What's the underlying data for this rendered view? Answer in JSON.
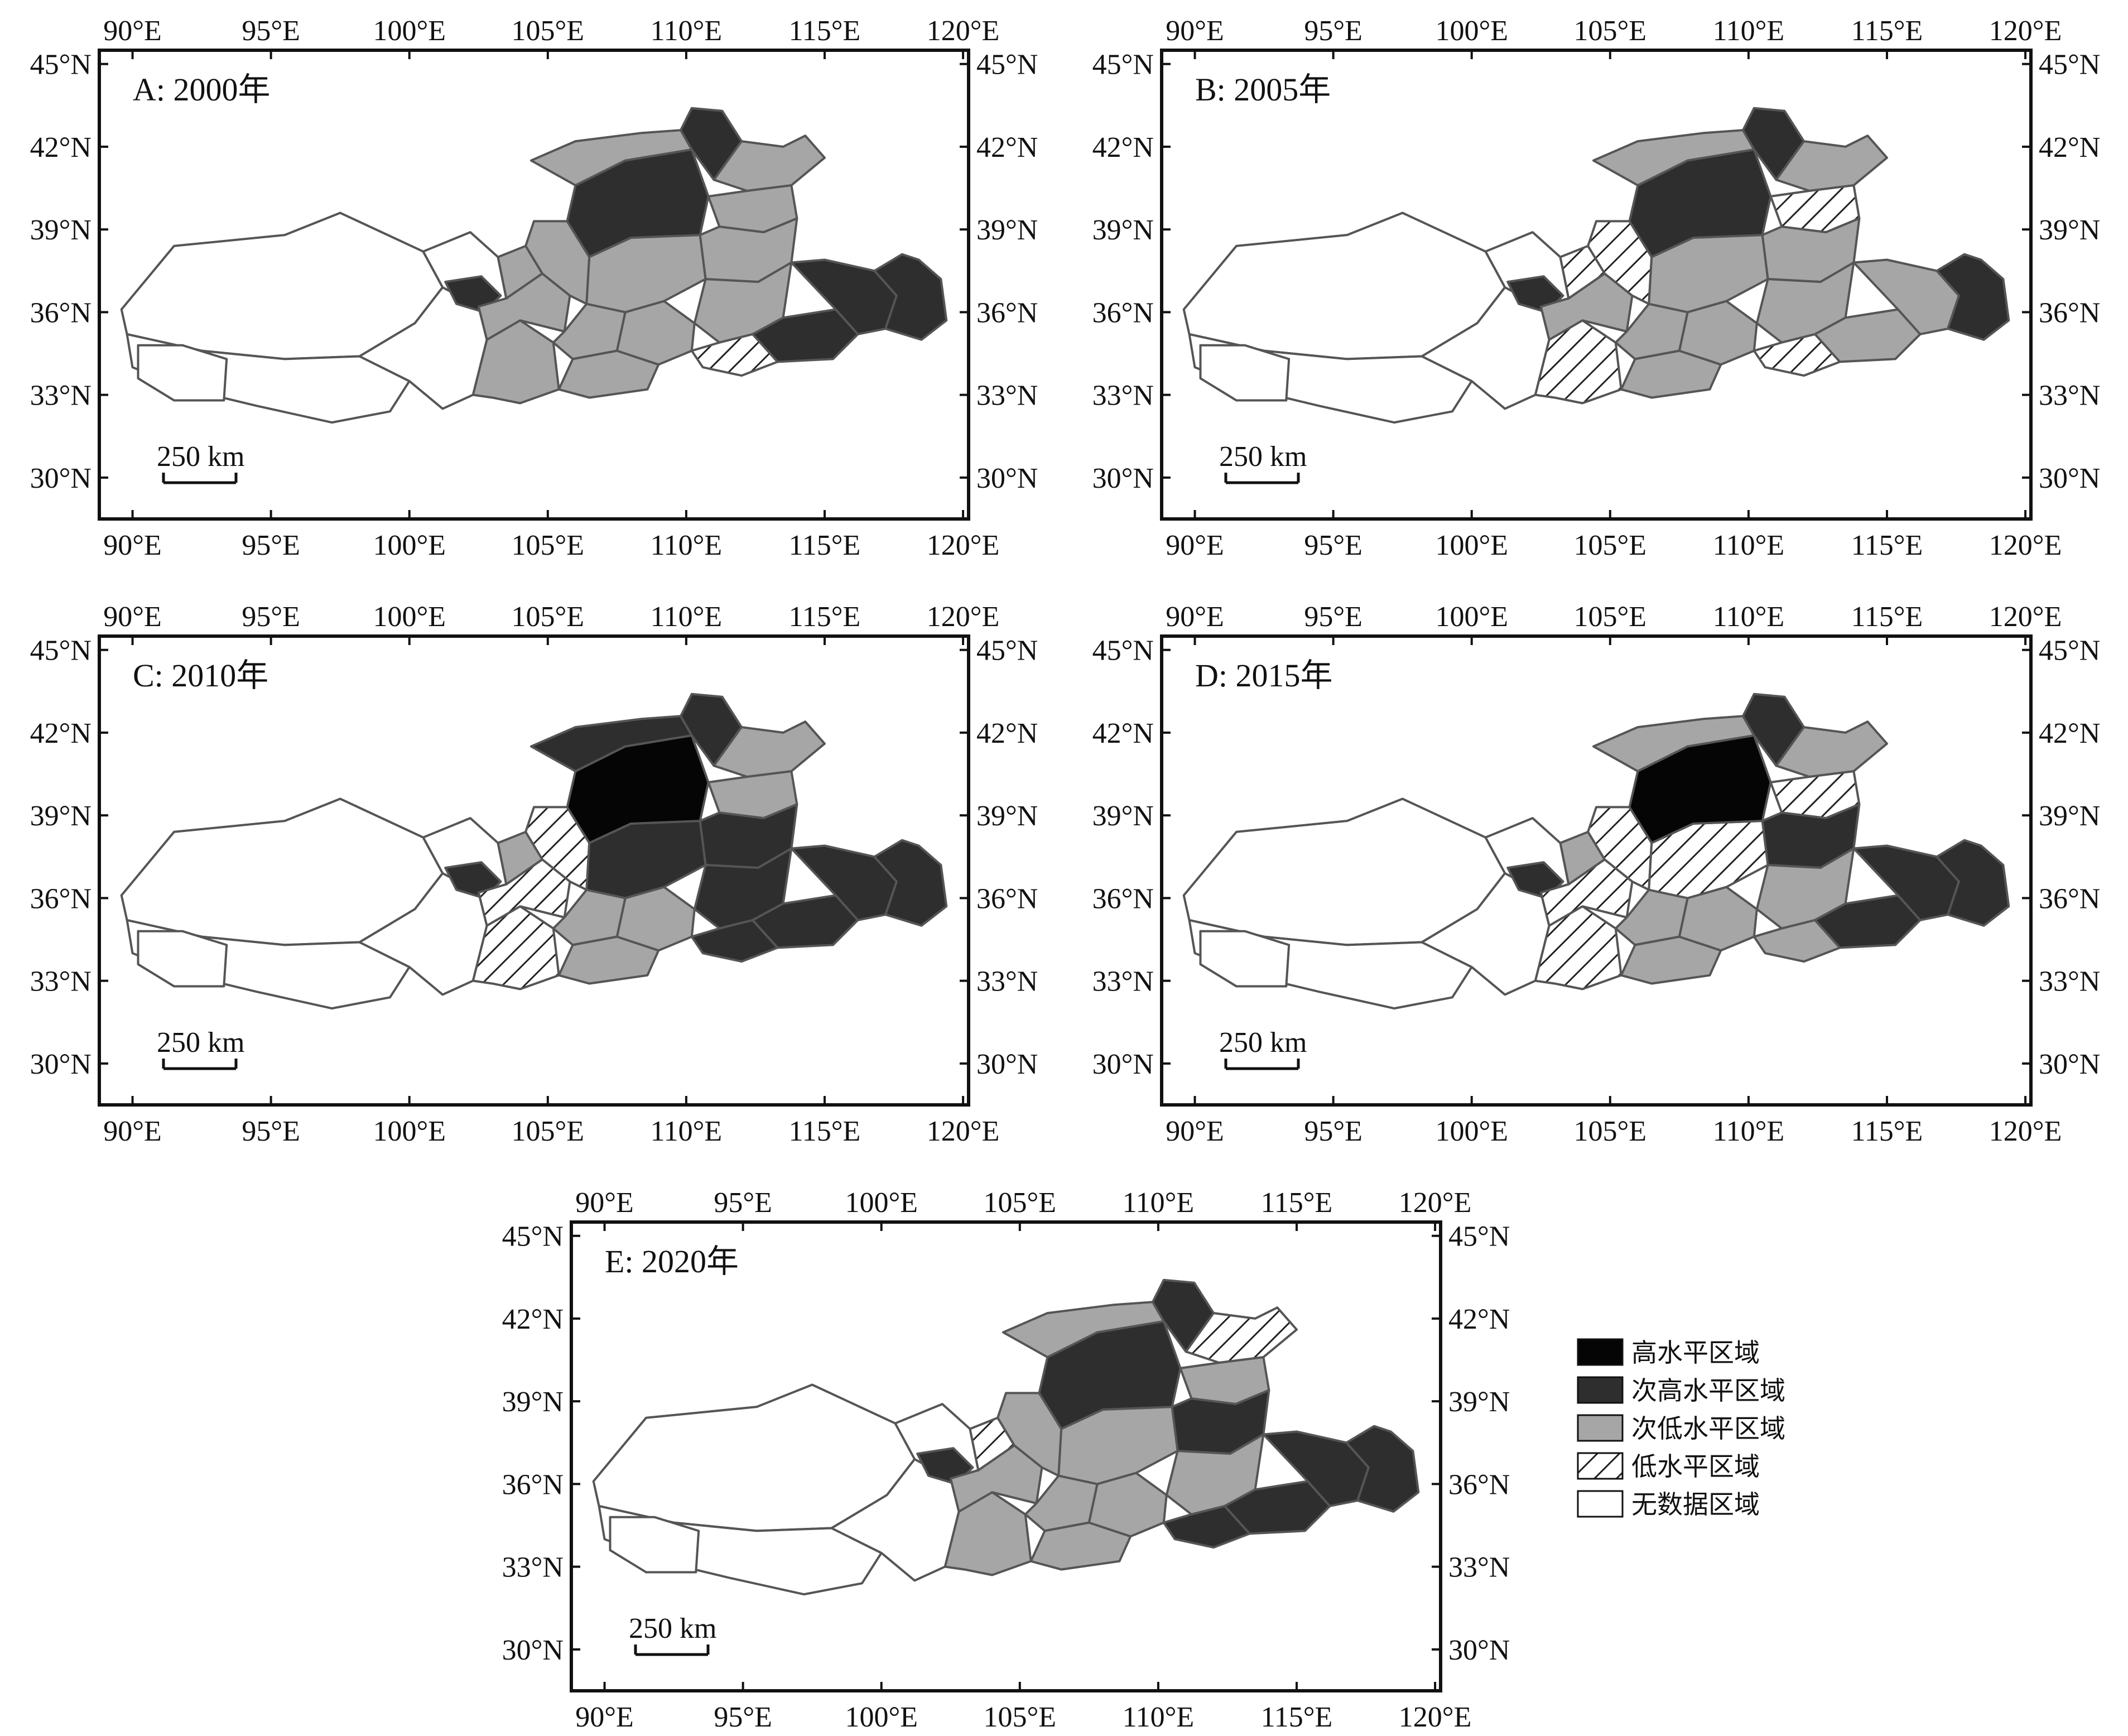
{
  "figure": {
    "panels": [
      {
        "id": "A",
        "title": "A: 2000年",
        "pattern": "A"
      },
      {
        "id": "B",
        "title": "B: 2005年",
        "pattern": "B"
      },
      {
        "id": "C",
        "title": "C: 2010年",
        "pattern": "C"
      },
      {
        "id": "D",
        "title": "D: 2015年",
        "pattern": "D"
      },
      {
        "id": "E",
        "title": "E: 2020年",
        "pattern": "E"
      }
    ],
    "lon_ticks": [
      "90°E",
      "95°E",
      "100°E",
      "105°E",
      "110°E",
      "115°E",
      "120°E"
    ],
    "lat_ticks": [
      "45°N",
      "42°N",
      "39°N",
      "36°N",
      "33°N",
      "30°N"
    ],
    "scale_bar": "250 km",
    "legend": [
      {
        "label": "高水平区域",
        "fill": "black"
      },
      {
        "label": "次高水平区域",
        "fill": "dark"
      },
      {
        "label": "次低水平区域",
        "fill": "gray"
      },
      {
        "label": "低水平区域",
        "fill": "hatch"
      },
      {
        "label": "无数据区域",
        "fill": "white"
      }
    ],
    "colors": {
      "high": "#050505",
      "sub_high": "#2e2e2e",
      "sub_low": "#a6a6a6",
      "low": "hatch",
      "no_data": "#ffffff",
      "boundary": "#555555"
    }
  }
}
